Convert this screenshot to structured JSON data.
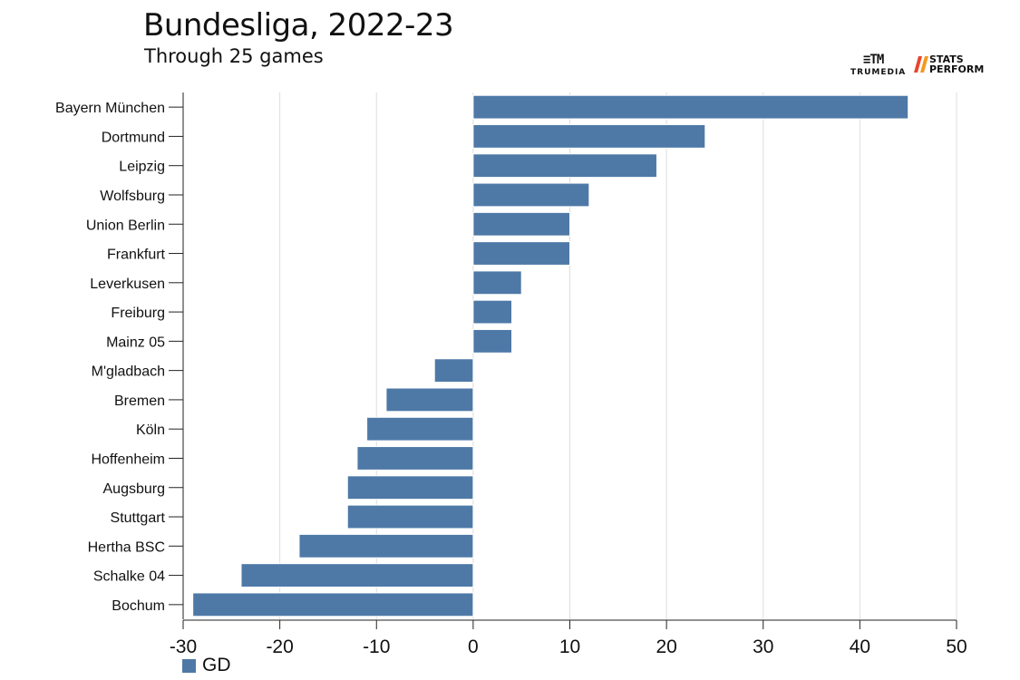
{
  "title": "Bundesliga, 2022-23",
  "subtitle": "Through 25 games",
  "logos": {
    "trumedia": "TRUMEDIA",
    "stats_perform": "STATS PERFORM"
  },
  "legend": {
    "label": "GD",
    "color": "#4e79a7"
  },
  "chart_data": {
    "type": "bar",
    "orientation": "horizontal",
    "title": "Bundesliga, 2022-23",
    "subtitle": "Through 25 games",
    "categories": [
      "Bayern München",
      "Dortmund",
      "Leipzig",
      "Wolfsburg",
      "Union Berlin",
      "Frankfurt",
      "Leverkusen",
      "Freiburg",
      "Mainz 05",
      "M'gladbach",
      "Bremen",
      "Köln",
      "Hoffenheim",
      "Augsburg",
      "Stuttgart",
      "Hertha BSC",
      "Schalke 04",
      "Bochum"
    ],
    "series": [
      {
        "name": "GD",
        "color": "#4e79a7",
        "values": [
          45,
          24,
          19,
          12,
          10,
          10,
          5,
          4,
          4,
          -4,
          -9,
          -11,
          -12,
          -13,
          -13,
          -18,
          -24,
          -29
        ]
      }
    ],
    "xlim": [
      -30,
      50
    ],
    "xticks": [
      -30,
      -20,
      -10,
      0,
      10,
      20,
      30,
      40,
      50
    ],
    "grid": true,
    "legend_position": "bottom-left"
  }
}
